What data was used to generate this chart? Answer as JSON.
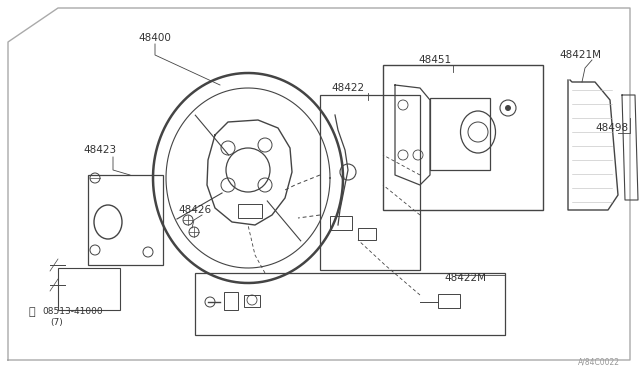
{
  "bg_color": "#ffffff",
  "line_color": "#444444",
  "text_color": "#333333",
  "label_color": "#555555",
  "watermark": "A/84C0022",
  "fig_width": 6.4,
  "fig_height": 3.72,
  "dpi": 100
}
